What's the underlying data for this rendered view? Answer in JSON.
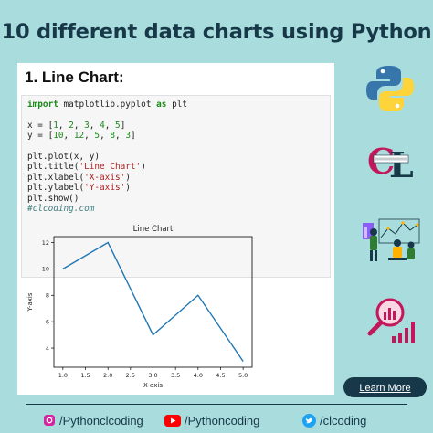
{
  "headline": "10 different data charts using Python",
  "card": {
    "title": "1. Line Chart:",
    "code_lines": [
      [
        {
          "t": "import",
          "c": "kw"
        },
        {
          "t": " matplotlib.pyplot "
        },
        {
          "t": "as",
          "c": "kw"
        },
        {
          "t": " plt"
        }
      ],
      [],
      [
        {
          "t": "x = ["
        },
        {
          "t": "1",
          "c": "num"
        },
        {
          "t": ", "
        },
        {
          "t": "2",
          "c": "num"
        },
        {
          "t": ", "
        },
        {
          "t": "3",
          "c": "num"
        },
        {
          "t": ", "
        },
        {
          "t": "4",
          "c": "num"
        },
        {
          "t": ", "
        },
        {
          "t": "5",
          "c": "num"
        },
        {
          "t": "]"
        }
      ],
      [
        {
          "t": "y = ["
        },
        {
          "t": "10",
          "c": "num"
        },
        {
          "t": ", "
        },
        {
          "t": "12",
          "c": "num"
        },
        {
          "t": ", "
        },
        {
          "t": "5",
          "c": "num"
        },
        {
          "t": ", "
        },
        {
          "t": "8",
          "c": "num"
        },
        {
          "t": ", "
        },
        {
          "t": "3",
          "c": "num"
        },
        {
          "t": "]"
        }
      ],
      [],
      [
        {
          "t": "plt.plot(x, y)"
        }
      ],
      [
        {
          "t": "plt.title("
        },
        {
          "t": "'Line Chart'",
          "c": "str"
        },
        {
          "t": ")"
        }
      ],
      [
        {
          "t": "plt.xlabel("
        },
        {
          "t": "'X-axis'",
          "c": "str"
        },
        {
          "t": ")"
        }
      ],
      [
        {
          "t": "plt.ylabel("
        },
        {
          "t": "'Y-axis'",
          "c": "str"
        },
        {
          "t": ")"
        }
      ],
      [
        {
          "t": "plt.show()"
        }
      ],
      [
        {
          "t": "#clcoding.com",
          "c": "cm"
        }
      ]
    ]
  },
  "chart_data": {
    "type": "line",
    "title": "Line Chart",
    "xlabel": "X-axis",
    "ylabel": "Y-axis",
    "x": [
      1,
      2,
      3,
      4,
      5
    ],
    "y": [
      10,
      12,
      5,
      8,
      3
    ],
    "xlim": [
      0.8,
      5.2
    ],
    "ylim": [
      2.55,
      12.45
    ],
    "xticks": [
      "1.0",
      "1.5",
      "2.0",
      "2.5",
      "3.0",
      "3.5",
      "4.0",
      "4.5",
      "5.0"
    ],
    "yticks": [
      "4",
      "6",
      "8",
      "10",
      "12"
    ],
    "grid": false,
    "line_color": "#1f77b4"
  },
  "button": {
    "learn_more": "Learn More"
  },
  "social": {
    "instagram": "/Pythonclcoding",
    "youtube": "/Pythoncoding",
    "twitter": "/clcoding"
  },
  "icons": {
    "python_logo": "python-logo-icon",
    "brand_logo": "clcoding-logo-icon",
    "analytics_illustration": "data-analytics-illustration-icon",
    "search_chart": "magnifier-chart-icon",
    "instagram": "instagram-icon",
    "youtube": "youtube-icon",
    "twitter": "twitter-icon"
  },
  "colors": {
    "background": "#a9dcdc",
    "navy": "#163848",
    "accent_pink": "#c2185b"
  }
}
